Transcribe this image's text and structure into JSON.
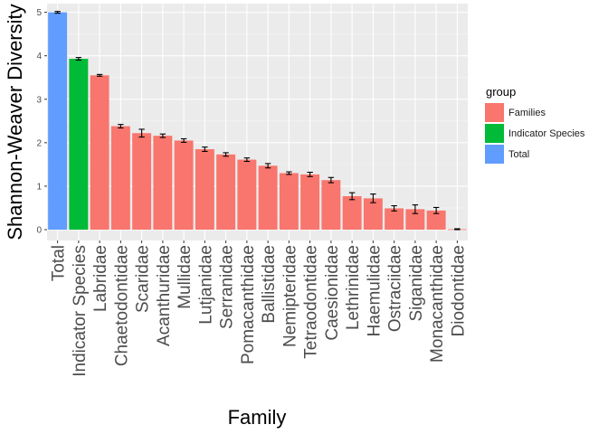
{
  "chart_data": {
    "type": "bar",
    "xlabel": "Family",
    "ylabel": "Shannon-Weaver Diversity",
    "ylim": [
      0,
      5.2
    ],
    "yticks": [
      "0",
      "1",
      "2",
      "3",
      "4",
      "5"
    ],
    "categories": [
      "Total",
      "Indicator Species",
      "Labridae",
      "Chaetodontidae",
      "Scaridae",
      "Acanthuridae",
      "Mullidae",
      "Lutjanidae",
      "Serranidae",
      "Pomacanthidae",
      "Ballistidae",
      "Nemipteridae",
      "Tetraodontidae",
      "Caesionidae",
      "Lethrinidae",
      "Haemulidae",
      "Ostraciidae",
      "Siganidae",
      "Monacanthidae",
      "Diodontidae"
    ],
    "values": [
      5.0,
      3.93,
      3.55,
      2.38,
      2.22,
      2.16,
      2.05,
      1.85,
      1.73,
      1.61,
      1.47,
      1.3,
      1.27,
      1.14,
      0.77,
      0.72,
      0.49,
      0.47,
      0.44,
      0.01
    ],
    "errors": [
      0.02,
      0.03,
      0.02,
      0.04,
      0.09,
      0.04,
      0.04,
      0.05,
      0.04,
      0.04,
      0.05,
      0.03,
      0.05,
      0.06,
      0.08,
      0.1,
      0.06,
      0.1,
      0.07,
      0.01
    ],
    "groups": [
      "Total",
      "Indicator Species",
      "Families",
      "Families",
      "Families",
      "Families",
      "Families",
      "Families",
      "Families",
      "Families",
      "Families",
      "Families",
      "Families",
      "Families",
      "Families",
      "Families",
      "Families",
      "Families",
      "Families",
      "Families"
    ],
    "grid": true,
    "legend_position": "right"
  },
  "legend": {
    "title": "group",
    "items": [
      {
        "label": "Families",
        "color": "#F8766D"
      },
      {
        "label": "Indicator Species",
        "color": "#00BA38"
      },
      {
        "label": "Total",
        "color": "#619CFF"
      }
    ]
  },
  "colors": {
    "panel": "#EBEBEB",
    "grid_major": "#FFFFFF",
    "Families": "#F8766D",
    "Indicator Species": "#00BA38",
    "Total": "#619CFF"
  }
}
